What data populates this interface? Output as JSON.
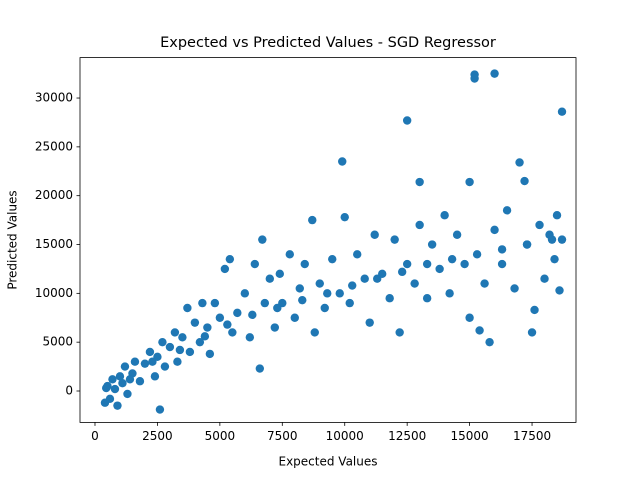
{
  "chart_data": {
    "type": "scatter",
    "title": "Expected vs Predicted Values - SGD Regressor",
    "x_label": "Expected Values",
    "y_label": "Predicted Values",
    "color": "#1f77b4",
    "grid": false,
    "xlim": [
      -600,
      19260
    ],
    "ylim": [
      -3215,
      34140
    ],
    "xticks": [
      0,
      2500,
      5000,
      7500,
      10000,
      12500,
      15000,
      17500
    ],
    "yticks": [
      0,
      5000,
      10000,
      15000,
      20000,
      25000,
      30000
    ],
    "x": [
      400,
      450,
      500,
      600,
      700,
      800,
      900,
      1000,
      1100,
      1200,
      1300,
      1500,
      1600,
      1800,
      2000,
      2200,
      2400,
      2500,
      2600,
      2700,
      2800,
      3000,
      3200,
      3300,
      3500,
      3700,
      3800,
      4000,
      4200,
      4300,
      4500,
      4600,
      4800,
      5000,
      5200,
      5400,
      5500,
      5700,
      6000,
      6200,
      6400,
      6600,
      6700,
      6800,
      7000,
      7200,
      7400,
      7500,
      7800,
      8000,
      8200,
      8400,
      8700,
      8800,
      9000,
      9200,
      9500,
      9800,
      9900,
      10000,
      10200,
      10500,
      10800,
      11000,
      11200,
      11500,
      11800,
      12000,
      12200,
      12500,
      12500,
      12800,
      13000,
      13000,
      13300,
      13500,
      13800,
      14000,
      14200,
      14500,
      14800,
      15000,
      15000,
      15200,
      15200,
      15400,
      15600,
      15800,
      16000,
      16000,
      16300,
      16500,
      16800,
      17000,
      17200,
      17300,
      17500,
      17600,
      17800,
      18000,
      18200,
      18400,
      18500,
      18600,
      18700,
      18700,
      1400,
      2300,
      3400,
      4400,
      5300,
      6300,
      7300,
      8300,
      9300,
      10300,
      11300,
      12300,
      13300,
      14300,
      15300,
      16300,
      17300,
      18300
    ],
    "values": [
      -1200,
      300,
      500,
      -800,
      1200,
      200,
      -1500,
      1500,
      800,
      2500,
      -300,
      1800,
      3000,
      1000,
      2800,
      4000,
      1500,
      3500,
      -1900,
      5000,
      2500,
      4500,
      6000,
      3000,
      5500,
      8500,
      4000,
      7000,
      5000,
      9000,
      6500,
      3800,
      9000,
      7500,
      12500,
      13500,
      6000,
      8000,
      10000,
      5500,
      13000,
      2300,
      15500,
      9000,
      11500,
      6500,
      12000,
      9000,
      14000,
      7500,
      10500,
      13000,
      17500,
      6000,
      11000,
      8500,
      13500,
      10000,
      23500,
      17800,
      9000,
      14000,
      11500,
      7000,
      16000,
      12000,
      9500,
      15500,
      6000,
      27700,
      13000,
      11000,
      21400,
      17000,
      9500,
      15000,
      12500,
      18000,
      10000,
      16000,
      13000,
      21400,
      7500,
      32400,
      32000,
      6200,
      11000,
      5000,
      32500,
      16500,
      13000,
      18500,
      10500,
      23400,
      21500,
      15000,
      6000,
      8300,
      17000,
      11500,
      16000,
      13500,
      18000,
      10300,
      28600,
      15500,
      1200,
      3000,
      4200,
      5600,
      6800,
      7800,
      8500,
      9300,
      10000,
      10800,
      11500,
      12200,
      13000,
      13500,
      14000,
      14500,
      15000,
      15500
    ]
  }
}
